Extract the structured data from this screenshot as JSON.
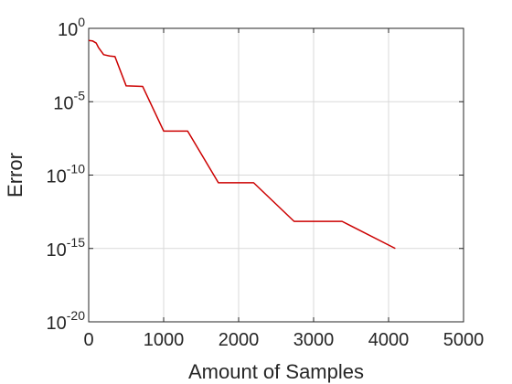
{
  "chart_data": {
    "type": "line",
    "title": "",
    "xlabel": "Amount of Samples",
    "ylabel": "Error",
    "xlim": [
      0,
      5000
    ],
    "ylim": [
      1e-20,
      1
    ],
    "yscale": "log",
    "grid": true,
    "x_ticks": [
      0,
      1000,
      2000,
      3000,
      4000,
      5000
    ],
    "x_tick_labels": [
      "0",
      "1000",
      "2000",
      "3000",
      "4000",
      "5000"
    ],
    "y_ticks": [
      {
        "value": 1,
        "base": "10",
        "exp": "0"
      },
      {
        "value": 1e-05,
        "base": "10",
        "exp": "-5"
      },
      {
        "value": 1e-10,
        "base": "10",
        "exp": "-10"
      },
      {
        "value": 1e-15,
        "base": "10",
        "exp": "-15"
      },
      {
        "value": 1e-20,
        "base": "10",
        "exp": "-20"
      }
    ],
    "series": [
      {
        "color": "#cc0000",
        "x": [
          0,
          50,
          100,
          130,
          200,
          280,
          350,
          500,
          720,
          1000,
          1320,
          1730,
          2200,
          2740,
          3380,
          4090
        ],
        "y": [
          0.15,
          0.14,
          0.1,
          0.05,
          0.016,
          0.013,
          0.012,
          0.00012,
          0.00011,
          1e-07,
          1e-07,
          3e-11,
          3e-11,
          7e-14,
          7e-14,
          1e-15
        ]
      }
    ]
  }
}
